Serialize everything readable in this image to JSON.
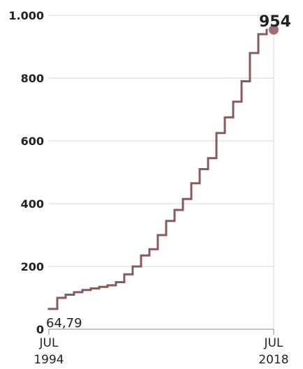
{
  "chart_data": {
    "type": "line",
    "step": true,
    "grid": true,
    "series": [
      {
        "color": "#875b5e",
        "values": [
          64.79,
          100,
          110,
          118,
          125,
          130,
          135,
          140,
          150,
          175,
          200,
          235,
          255,
          300,
          345,
          380,
          415,
          465,
          510,
          545,
          625,
          675,
          725,
          790,
          880,
          940,
          954
        ]
      }
    ],
    "ylim": [
      0,
      1000
    ],
    "y_ticks": [
      {
        "value": 0,
        "label": "0"
      },
      {
        "value": 200,
        "label": "200"
      },
      {
        "value": 400,
        "label": "400"
      },
      {
        "value": 600,
        "label": "600"
      },
      {
        "value": 800,
        "label": "800"
      },
      {
        "value": 1000,
        "label": "1.000"
      }
    ],
    "x_ticks": [
      {
        "line1": "JUL",
        "line2": "1994"
      },
      {
        "line1": "JUL",
        "line2": "2018"
      }
    ],
    "annotations": {
      "start": "64,79",
      "end": "954"
    },
    "colors": {
      "line": "#875b5e",
      "marker": "#a06e72",
      "grid": "#d4d4d4",
      "axis": "#8f8f8f",
      "text": "#222222"
    }
  }
}
